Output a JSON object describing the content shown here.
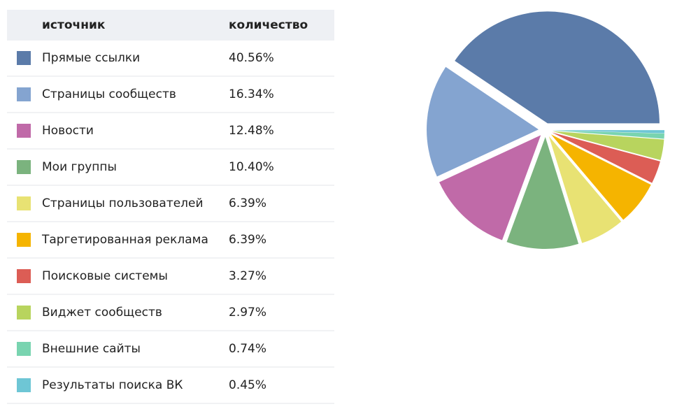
{
  "chart_data": {
    "type": "pie",
    "table_header": [
      "источник",
      "количество"
    ],
    "categories": [
      "Прямые ссылки",
      "Страницы сообществ",
      "Новости",
      "Мои группы",
      "Страницы пользователей",
      "Таргетированная реклама",
      "Поисковые системы",
      "Виджет сообществ",
      "Внешние сайты",
      "Результаты поиска ВК"
    ],
    "values": [
      40.56,
      16.34,
      12.48,
      10.4,
      6.39,
      6.39,
      3.27,
      2.97,
      0.74,
      0.45
    ],
    "value_labels": [
      "40.56%",
      "16.34%",
      "12.48%",
      "10.40%",
      "6.39%",
      "6.39%",
      "3.27%",
      "2.97%",
      "0.74%",
      "0.45%"
    ],
    "colors": [
      "#5b7ba9",
      "#84a4d0",
      "#c06aa8",
      "#7bb37e",
      "#e8e273",
      "#f5b400",
      "#dc5d55",
      "#b8d45e",
      "#79d4b0",
      "#6ec6d5"
    ]
  }
}
